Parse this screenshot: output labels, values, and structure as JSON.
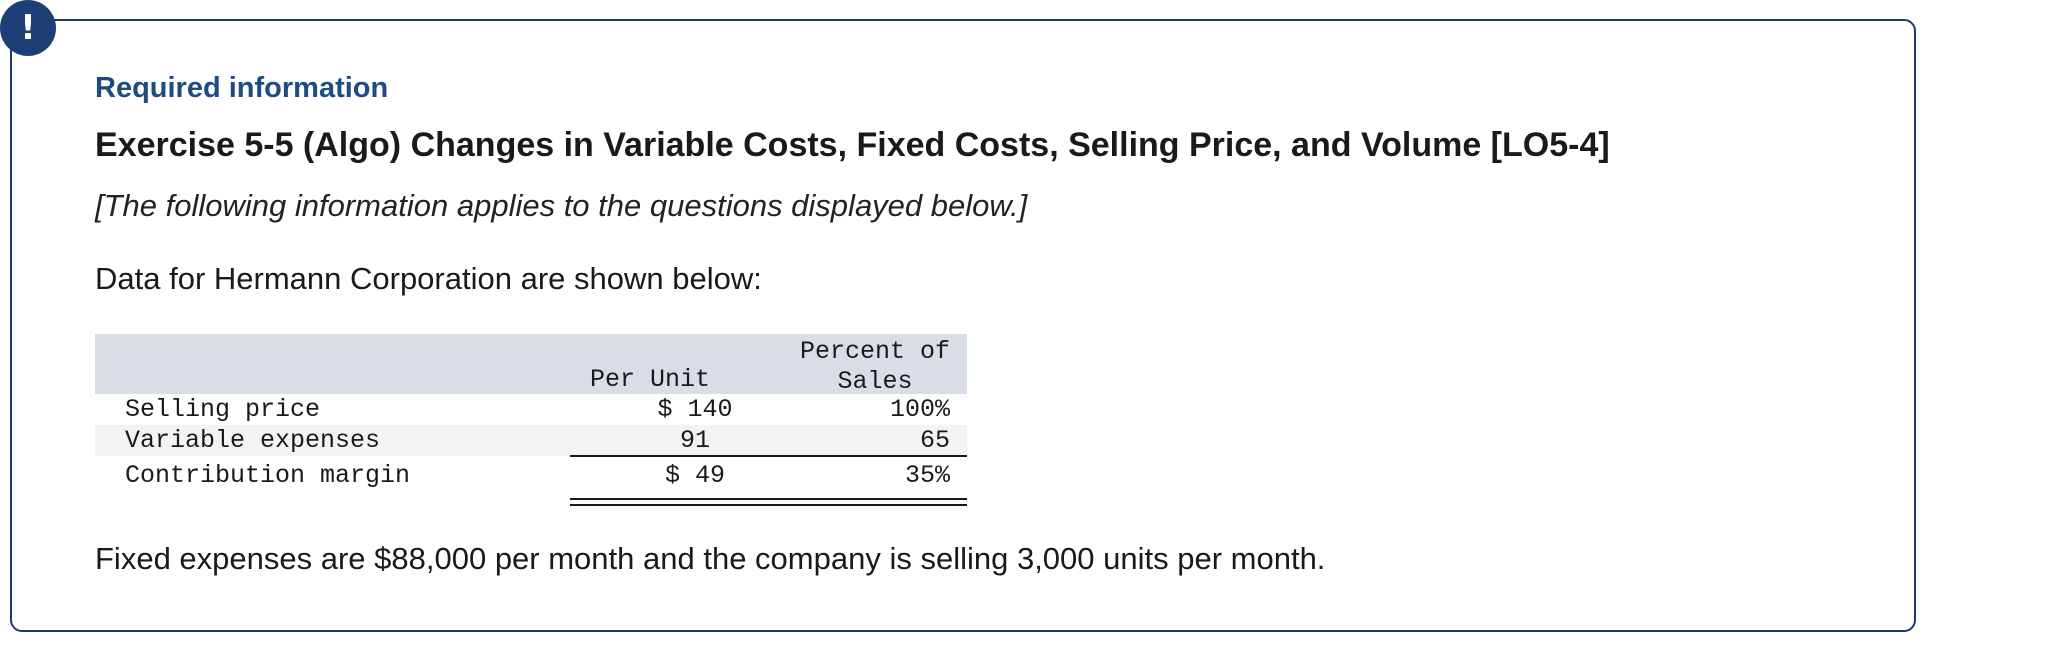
{
  "alert": {
    "symbol": "!"
  },
  "header": {
    "required_label": "Required information",
    "title": "Exercise 5-5 (Algo) Changes in Variable Costs, Fixed Costs, Selling Price, and Volume [LO5-4]",
    "note": "[The following information applies to the questions displayed below.]"
  },
  "intro": "Data for Hermann Corporation are shown below:",
  "table": {
    "col_per_unit": "Per Unit",
    "col_percent_line1": "Percent of",
    "col_percent_line2": "Sales",
    "rows": [
      {
        "label": "Selling price",
        "per_unit": "$ 140",
        "percent": "100%"
      },
      {
        "label": "Variable expenses",
        "per_unit": "91",
        "percent": "65"
      },
      {
        "label": "Contribution margin",
        "per_unit": "$ 49",
        "percent": "35%"
      }
    ]
  },
  "fixed_note": "Fixed expenses are $88,000 per month and the company is selling 3,000 units per month."
}
